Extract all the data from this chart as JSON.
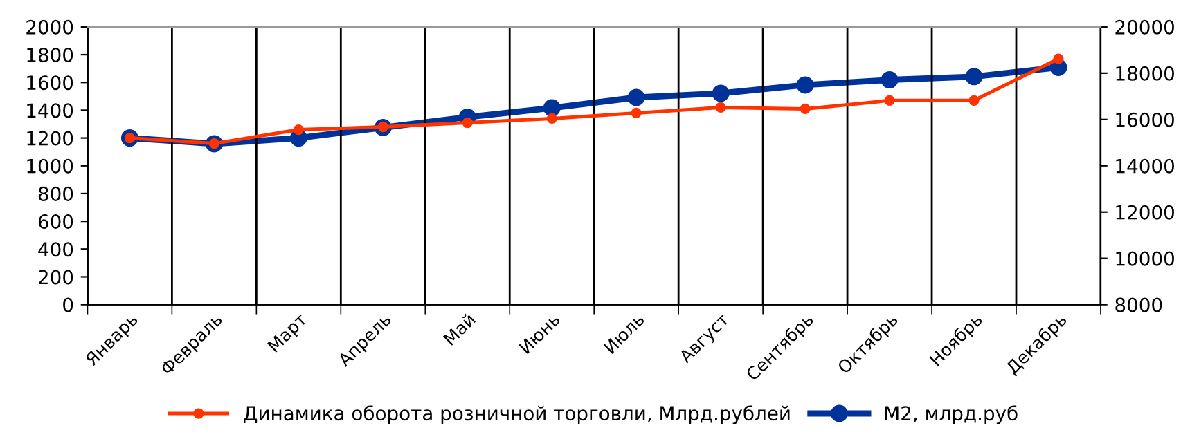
{
  "chart_data": {
    "type": "line",
    "categories": [
      "Январь",
      "Февраль",
      "Март",
      "Апрель",
      "Май",
      "Июнь",
      "Июль",
      "Август",
      "Сентябрь",
      "Октябрь",
      "Ноябрь",
      "Декабрь"
    ],
    "series": [
      {
        "name": "Динамика оборота розничной торговли, Млрд.рублей",
        "color": "#ff3300",
        "values": [
          1200,
          1160,
          1260,
          1280,
          1310,
          1340,
          1380,
          1420,
          1410,
          1470,
          1470,
          1770
        ]
      },
      {
        "name": "М2, млрд.руб",
        "color": "#003399",
        "axis": "y2",
        "values": [
          15200,
          14950,
          15200,
          15650,
          16100,
          16500,
          16950,
          17130,
          17490,
          17710,
          17850,
          18250
        ]
      }
    ],
    "ylim": [
      0,
      2000
    ],
    "yticks": [
      0,
      200,
      400,
      600,
      800,
      1000,
      1200,
      1400,
      1600,
      1800,
      2000
    ],
    "y2lim": [
      8000,
      20000
    ],
    "y2ticks": [
      8000,
      10000,
      12000,
      14000,
      16000,
      18000,
      20000
    ],
    "grid": "x",
    "legend": "bottom",
    "marker": "circle",
    "line_style": "solid"
  }
}
